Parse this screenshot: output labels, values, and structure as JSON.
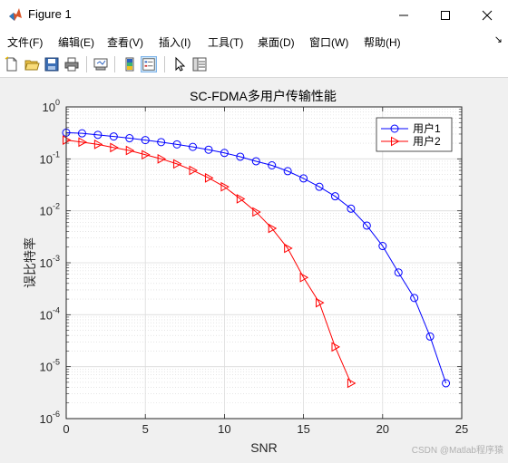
{
  "window": {
    "title": "Figure 1",
    "icon": "matlab-icon",
    "controls": [
      "minimize-icon",
      "maximize-icon",
      "close-icon"
    ]
  },
  "menu": [
    {
      "label": "文件(F)"
    },
    {
      "label": "编辑(E)"
    },
    {
      "label": "查看(V)"
    },
    {
      "label": "插入(I)"
    },
    {
      "label": "工具(T)"
    },
    {
      "label": "桌面(D)"
    },
    {
      "label": "窗口(W)"
    },
    {
      "label": "帮助(H)"
    }
  ],
  "toolbar": [
    "new-figure-icon",
    "open-file-icon",
    "save-icon",
    "print-icon",
    "link-plot-icon",
    "insert-colorbar-icon",
    "insert-legend-icon",
    "edit-plot-icon",
    "property-inspector-icon"
  ],
  "watermark": "CSDN @Matlab程序猿",
  "chart_data": {
    "type": "line",
    "title": "SC-FDMA多用户传输性能",
    "xlabel": "SNR",
    "ylabel": "误比特率",
    "xlim": [
      0,
      25
    ],
    "ylim": [
      1e-06,
      1
    ],
    "yscale": "log",
    "grid": true,
    "minor_grid": true,
    "xticks": [
      0,
      5,
      10,
      15,
      20,
      25
    ],
    "yticks": [
      {
        "value": 1,
        "mantissa": "10",
        "exp": "0"
      },
      {
        "value": 0.1,
        "mantissa": "10",
        "exp": "-1"
      },
      {
        "value": 0.01,
        "mantissa": "10",
        "exp": "-2"
      },
      {
        "value": 0.001,
        "mantissa": "10",
        "exp": "-3"
      },
      {
        "value": 0.0001,
        "mantissa": "10",
        "exp": "-4"
      },
      {
        "value": 1e-05,
        "mantissa": "10",
        "exp": "-5"
      },
      {
        "value": 1e-06,
        "mantissa": "10",
        "exp": "-6"
      }
    ],
    "legend": "top-right",
    "series": [
      {
        "name": "用户1",
        "color": "#0000ff",
        "marker": "circle",
        "x": [
          0,
          1,
          2,
          3,
          4,
          5,
          6,
          7,
          8,
          9,
          10,
          11,
          12,
          13,
          14,
          15,
          16,
          17,
          18,
          19,
          20,
          21,
          22,
          23,
          24
        ],
        "y": [
          0.32,
          0.31,
          0.29,
          0.27,
          0.25,
          0.23,
          0.21,
          0.19,
          0.17,
          0.15,
          0.13,
          0.11,
          0.09,
          0.075,
          0.058,
          0.042,
          0.029,
          0.019,
          0.011,
          0.0052,
          0.0021,
          0.00065,
          0.00021,
          3.8e-05,
          4.8e-06
        ]
      },
      {
        "name": "用户2",
        "color": "#ff0000",
        "marker": "triangle-right",
        "x": [
          0,
          1,
          2,
          3,
          4,
          5,
          6,
          7,
          8,
          9,
          10,
          11,
          12,
          13,
          14,
          15,
          16,
          17,
          18
        ],
        "y": [
          0.23,
          0.21,
          0.19,
          0.165,
          0.145,
          0.12,
          0.1,
          0.08,
          0.06,
          0.043,
          0.029,
          0.017,
          0.0095,
          0.0046,
          0.0019,
          0.00052,
          0.00017,
          2.4e-05,
          4.8e-06
        ]
      }
    ]
  }
}
